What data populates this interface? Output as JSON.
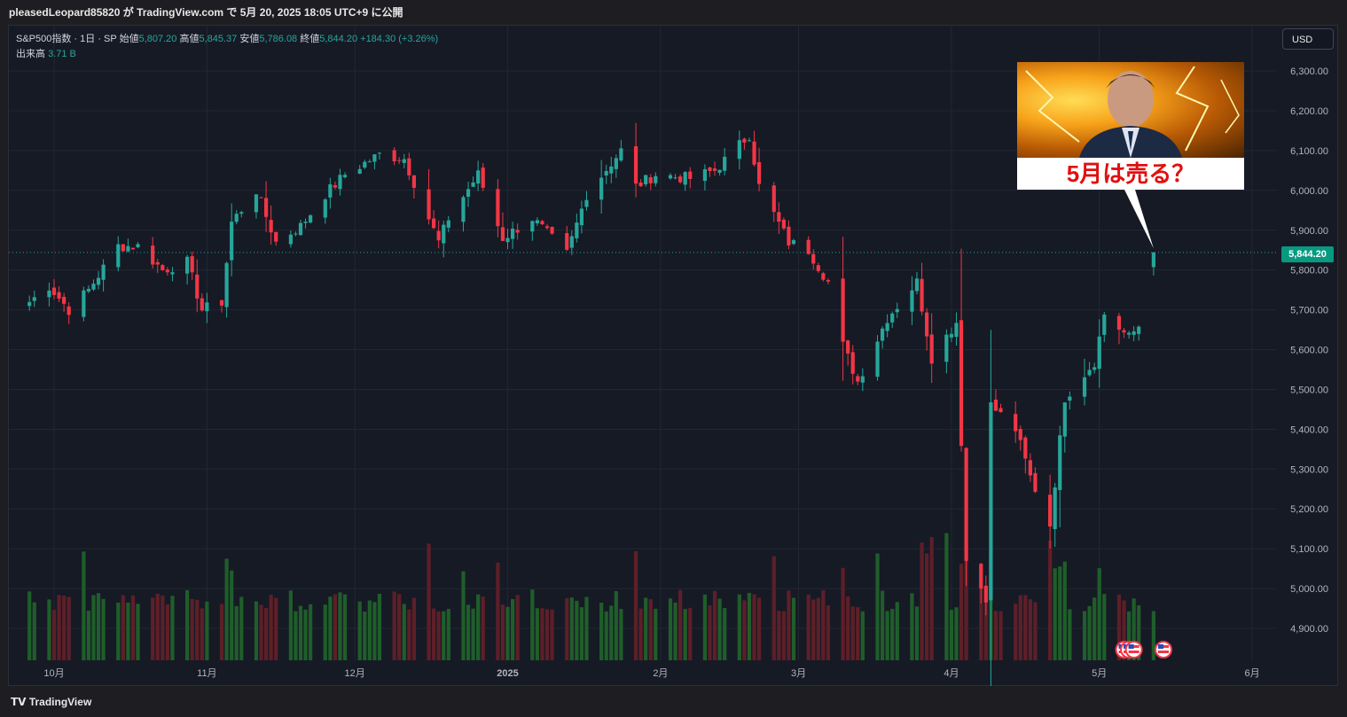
{
  "header": {
    "published_text": "pleasedLeopard85820 が TradingView.com で 5月 20, 2025 18:05 UTC+9 に公開"
  },
  "legend": {
    "symbol": "S&P500指数 · 1日 · SP",
    "open_label": "始値",
    "open_value": "5,807.20",
    "high_label": "高値",
    "high_value": "5,845.37",
    "low_label": "安値",
    "low_value": "5,786.08",
    "close_label": "終値",
    "close_value": "5,844.20",
    "change": "+184.30 (+3.26%)",
    "volume_label": "出来高",
    "volume_value": "3.71 B"
  },
  "currency_button": "USD",
  "last_price_label": "5,844.20",
  "annotation": {
    "caption": "5月は売る？"
  },
  "footer": {
    "logo_text": "TradingView"
  },
  "colors": {
    "up": "#26a69a",
    "down": "#f23645",
    "up_volume": "#1f5e2a",
    "down_volume": "#5e1f28",
    "background": "#161a25",
    "grid": "#232733"
  },
  "chart_data": {
    "type": "candlestick",
    "title": "",
    "ylim": [
      4820,
      6360
    ],
    "y_ticks": [
      "6,300.00",
      "6,200.00",
      "6,100.00",
      "6,000.00",
      "5,900.00",
      "5,800.00",
      "5,700.00",
      "5,600.00",
      "5,500.00",
      "5,400.00",
      "5,300.00",
      "5,200.00",
      "5,100.00",
      "5,000.00",
      "4,900.00"
    ],
    "x_ticks": [
      "10月",
      "11月",
      "12月",
      "2025",
      "2月",
      "3月",
      "4月",
      "5月",
      "6月"
    ],
    "grid": true,
    "anchors": [
      [
        "2024-09-26",
        5720
      ],
      [
        "2024-09-30",
        5760
      ],
      [
        "2024-10-04",
        5700
      ],
      [
        "2024-10-08",
        5750
      ],
      [
        "2024-10-14",
        5860
      ],
      [
        "2024-10-18",
        5860
      ],
      [
        "2024-10-23",
        5800
      ],
      [
        "2024-10-28",
        5820
      ],
      [
        "2024-10-31",
        5700
      ],
      [
        "2024-11-04",
        5720
      ],
      [
        "2024-11-06",
        5920
      ],
      [
        "2024-11-11",
        6000
      ],
      [
        "2024-11-15",
        5870
      ],
      [
        "2024-11-20",
        5910
      ],
      [
        "2024-11-25",
        5990
      ],
      [
        "2024-11-29",
        6040
      ],
      [
        "2024-12-06",
        6090
      ],
      [
        "2024-12-11",
        6080
      ],
      [
        "2024-12-18",
        5870
      ],
      [
        "2024-12-20",
        5930
      ],
      [
        "2024-12-26",
        6040
      ],
      [
        "2024-12-31",
        5880
      ],
      [
        "2025-01-06",
        5930
      ],
      [
        "2025-01-13",
        5840
      ],
      [
        "2025-01-17",
        5990
      ],
      [
        "2025-01-24",
        6100
      ],
      [
        "2025-01-27",
        6010
      ],
      [
        "2025-01-31",
        6040
      ],
      [
        "2025-02-07",
        6030
      ],
      [
        "2025-02-12",
        6050
      ],
      [
        "2025-02-19",
        6140
      ],
      [
        "2025-02-21",
        6010
      ],
      [
        "2025-02-27",
        5870
      ],
      [
        "2025-03-03",
        5850
      ],
      [
        "2025-03-07",
        5770
      ],
      [
        "2025-03-10",
        5610
      ],
      [
        "2025-03-13",
        5520
      ],
      [
        "2025-03-19",
        5680
      ],
      [
        "2025-03-25",
        5770
      ],
      [
        "2025-03-28",
        5580
      ],
      [
        "2025-04-02",
        5670
      ],
      [
        "2025-04-04",
        5070
      ],
      [
        "2025-04-08",
        4980
      ],
      [
        "2025-04-09",
        5460
      ],
      [
        "2025-04-14",
        5400
      ],
      [
        "2025-04-17",
        5280
      ],
      [
        "2025-04-21",
        5160
      ],
      [
        "2025-04-24",
        5480
      ],
      [
        "2025-04-30",
        5570
      ],
      [
        "2025-05-02",
        5690
      ],
      [
        "2025-05-07",
        5630
      ],
      [
        "2025-05-09",
        5660
      ],
      [
        "2025-05-12",
        5844
      ]
    ],
    "last_candle": {
      "date": "2025-05-12",
      "open": 5807.2,
      "high": 5845.37,
      "low": 5786.08,
      "close": 5844.2
    },
    "last_volume_billion": 3.71
  }
}
